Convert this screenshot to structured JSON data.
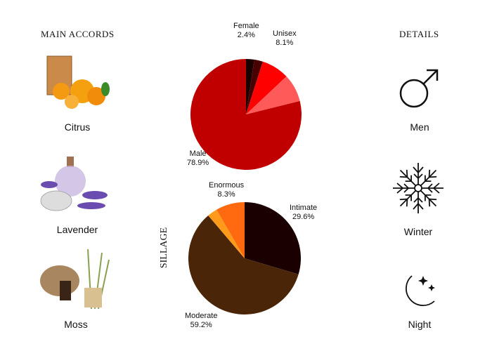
{
  "left": {
    "heading": "MAIN ACCORDS",
    "accords": [
      {
        "label": "Citrus",
        "icon": "citrus-image"
      },
      {
        "label": "Lavender",
        "icon": "lavender-image"
      },
      {
        "label": "Moss",
        "icon": "moss-image"
      }
    ]
  },
  "right": {
    "heading": "DETAILS",
    "items": [
      {
        "label": "Men",
        "icon": "male-symbol-icon"
      },
      {
        "label": "Winter",
        "icon": "snowflake-icon"
      },
      {
        "label": "Night",
        "icon": "moon-stars-icon"
      }
    ]
  },
  "chart_data": [
    {
      "type": "pie",
      "title": "",
      "slices": [
        {
          "label": "Female",
          "value": 2.4,
          "display": "2.4%",
          "color": "#1a0000"
        },
        {
          "label": "",
          "value": 2.5,
          "color": "#4a0000"
        },
        {
          "label": "Unisex",
          "value": 8.1,
          "display": "8.1%",
          "color": "#ff0000"
        },
        {
          "label": "",
          "value": 8.1,
          "color": "#ff5a5a"
        },
        {
          "label": "Male",
          "value": 78.9,
          "display": "78.9%",
          "color": "#c00000"
        }
      ]
    },
    {
      "type": "pie",
      "title": "SILLAGE",
      "slices": [
        {
          "label": "Intimate",
          "value": 29.6,
          "display": "29.6%",
          "color": "#1a0000"
        },
        {
          "label": "Moderate",
          "value": 59.2,
          "display": "59.2%",
          "color": "#4a2507"
        },
        {
          "label": "",
          "value": 2.9,
          "color": "#ff9a1a"
        },
        {
          "label": "Enormous",
          "value": 8.3,
          "display": "8.3%",
          "color": "#ff6a10"
        }
      ]
    }
  ]
}
